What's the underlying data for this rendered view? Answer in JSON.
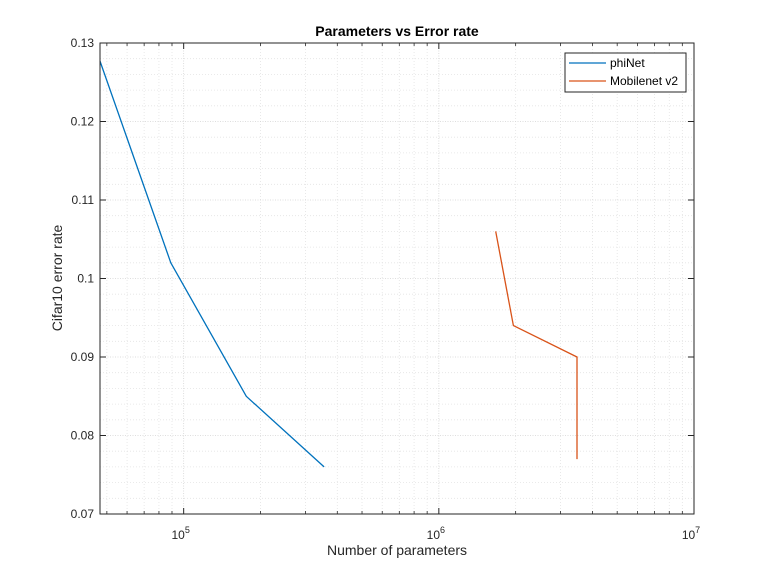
{
  "chart_data": {
    "type": "line",
    "title": "Parameters vs Error rate",
    "xlabel": "Number of parameters",
    "ylabel": "Cifar10 error rate",
    "xscale": "log",
    "xlim": [
      47000,
      10000000
    ],
    "ylim": [
      0.07,
      0.13
    ],
    "grid": true,
    "minor_grid": true,
    "legend_position": "top-right",
    "x_ticks": [
      {
        "value": 100000,
        "base": "10",
        "exp": "5"
      },
      {
        "value": 1000000,
        "base": "10",
        "exp": "6"
      },
      {
        "value": 10000000,
        "base": "10",
        "exp": "7"
      }
    ],
    "y_ticks": [
      {
        "value": 0.07,
        "label": "0.07"
      },
      {
        "value": 0.08,
        "label": "0.08"
      },
      {
        "value": 0.09,
        "label": "0.09"
      },
      {
        "value": 0.1,
        "label": "0.1"
      },
      {
        "value": 0.11,
        "label": "0.11"
      },
      {
        "value": 0.12,
        "label": "0.12"
      },
      {
        "value": 0.13,
        "label": "0.13"
      }
    ],
    "series": [
      {
        "name": "phiNet",
        "color": "#0072BD",
        "x": [
          47000,
          89000,
          176000,
          355000
        ],
        "y": [
          0.1277,
          0.102,
          0.085,
          0.076
        ]
      },
      {
        "name": "Mobilenet v2",
        "color": "#D95319",
        "x": [
          1670000,
          1960000,
          3480000,
          3480000
        ],
        "y": [
          0.106,
          0.094,
          0.09,
          0.077
        ]
      }
    ]
  }
}
